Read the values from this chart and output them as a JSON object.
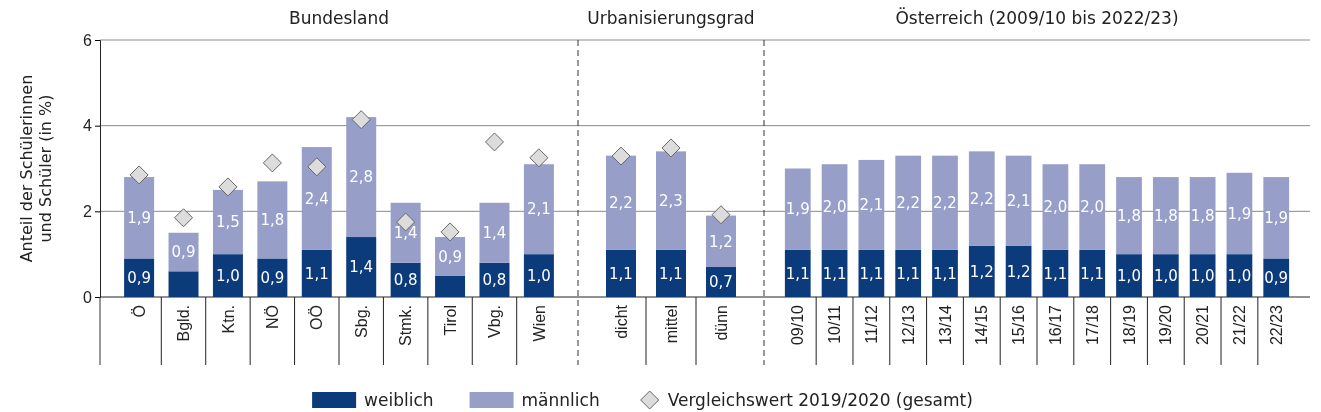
{
  "chart_data": [
    {
      "type": "bar",
      "title": "Bundesland",
      "ylabel": "Anteil der Schülerinnen und Schüler (in %)",
      "stacked": true,
      "legend": "bottom",
      "grid": "y",
      "categories": [
        "Ö",
        "Bgld.",
        "Ktn.",
        "NÖ",
        "OÖ",
        "Sbg.",
        "Stmk.",
        "Tirol",
        "Vbg.",
        "Wien"
      ],
      "ylim": [
        0,
        6
      ],
      "yticks": [
        0,
        2,
        4,
        6
      ],
      "series": [
        {
          "name": "weiblich",
          "color": "#0c3b7c",
          "values": [
            0.9,
            0.6,
            1.0,
            0.9,
            1.1,
            1.4,
            0.8,
            0.5,
            0.8,
            1.0
          ],
          "value_labels": [
            "0,9",
            null,
            "1,0",
            "0,9",
            "1,1",
            "1,4",
            "0,8",
            null,
            "0,8",
            "1,0"
          ]
        },
        {
          "name": "männlich",
          "color": "#979fc9",
          "values": [
            1.9,
            0.9,
            1.5,
            1.8,
            2.4,
            2.8,
            1.4,
            0.9,
            1.4,
            2.1
          ],
          "value_labels": [
            "1,9",
            "0,9",
            "1,5",
            "1,8",
            "2,4",
            "2,8",
            "1,4",
            "0,9",
            "1,4",
            "2,1"
          ]
        },
        {
          "name": "Vergleichswert 2019/2020 (gesamt)",
          "type": "scatter",
          "marker": "diamond",
          "color": "#dcdcdc",
          "values": [
            2.85,
            1.85,
            2.57,
            3.13,
            3.04,
            4.14,
            1.75,
            1.52,
            3.62,
            3.25
          ]
        }
      ]
    },
    {
      "type": "bar",
      "title": "Urbanisierungsgrad",
      "stacked": true,
      "grid": "y",
      "tick_labels": "x",
      "categories": [
        "dicht",
        "mittel",
        "dünn"
      ],
      "ylim": [
        0,
        6
      ],
      "yticks": [
        0,
        2,
        4,
        6
      ],
      "series": [
        {
          "color": "#0c3b7c",
          "values": [
            1.1,
            1.1,
            0.7
          ],
          "value_labels": [
            "1,1",
            "1,1",
            "0,7"
          ]
        },
        {
          "color": "#979fc9",
          "values": [
            2.2,
            2.3,
            1.2
          ],
          "value_labels": [
            "2,2",
            "2,3",
            "1,2"
          ]
        },
        {
          "type": "scatter",
          "marker": "diamond",
          "color": "#dcdcdc",
          "values": [
            3.29,
            3.48,
            1.92
          ]
        }
      ]
    },
    {
      "type": "bar",
      "title": "Österreich (2009/10 bis 2022/23)",
      "stacked": true,
      "grid": "y",
      "tick_labels": "x",
      "categories": [
        "09/10",
        "10/11",
        "11/12",
        "12/13",
        "13/14",
        "14/15",
        "15/16",
        "16/17",
        "17/18",
        "18/19",
        "19/20",
        "20/21",
        "21/22",
        "22/23"
      ],
      "ylim": [
        0,
        6
      ],
      "yticks": [
        0,
        2,
        4,
        6
      ],
      "series": [
        {
          "color": "#0c3b7c",
          "values": [
            1.1,
            1.1,
            1.1,
            1.1,
            1.1,
            1.2,
            1.2,
            1.1,
            1.1,
            1.0,
            1.0,
            1.0,
            1.0,
            0.9
          ],
          "value_labels": [
            "1,1",
            "1,1",
            "1,1",
            "1,1",
            "1,1",
            "1,2",
            "1,2",
            "1,1",
            "1,1",
            "1,0",
            "1,0",
            "1,0",
            "1,0",
            "0,9"
          ]
        },
        {
          "color": "#979fc9",
          "values": [
            1.9,
            2.0,
            2.1,
            2.2,
            2.2,
            2.2,
            2.1,
            2.0,
            2.0,
            1.8,
            1.8,
            1.8,
            1.9,
            1.9
          ],
          "value_labels": [
            "1,9",
            "2,0",
            "2,1",
            "2,2",
            "2,2",
            "2,2",
            "2,1",
            "2,0",
            "2,0",
            "1,8",
            "1,8",
            "1,8",
            "1,9",
            "1,9"
          ]
        }
      ]
    }
  ]
}
